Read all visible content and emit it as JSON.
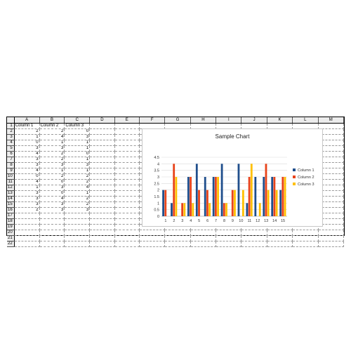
{
  "columns": [
    "A",
    "B",
    "C",
    "D",
    "E",
    "F",
    "G",
    "H",
    "I",
    "J",
    "K",
    "L",
    "M"
  ],
  "row_numbers": [
    "1",
    "2",
    "3",
    "4",
    "5",
    "6",
    "7",
    "8",
    "9",
    "10",
    "11",
    "12",
    "13",
    "14",
    "15",
    "16",
    "17",
    "18",
    "19",
    "20",
    "21",
    "22"
  ],
  "headers": [
    "Column 1",
    "Column 2",
    "Column 3"
  ],
  "data_rows": [
    [
      "2",
      "2",
      "0"
    ],
    [
      "1",
      "4",
      "3"
    ],
    [
      "0",
      "1",
      "1"
    ],
    [
      "3",
      "3",
      "1"
    ],
    [
      "4",
      "2",
      "0"
    ],
    [
      "3",
      "2",
      "1"
    ],
    [
      "3",
      "3",
      "3"
    ],
    [
      "4",
      "1",
      "1"
    ],
    [
      "0",
      "2",
      "2"
    ],
    [
      "4",
      "0",
      "2"
    ],
    [
      "1",
      "3",
      "4"
    ],
    [
      "3",
      "0",
      "1"
    ],
    [
      "3",
      "4",
      "2"
    ],
    [
      "3",
      "3",
      "2"
    ],
    [
      "2",
      "3",
      "3"
    ]
  ],
  "chart_data": {
    "type": "bar",
    "title": "Sample Chart",
    "categories": [
      "1",
      "2",
      "3",
      "4",
      "5",
      "6",
      "7",
      "8",
      "9",
      "10",
      "11",
      "12",
      "13",
      "14",
      "15"
    ],
    "series": [
      {
        "name": "Column 1",
        "color": "#1f4e8c",
        "values": [
          2,
          1,
          0,
          3,
          4,
          3,
          3,
          4,
          0,
          4,
          1,
          3,
          3,
          3,
          2
        ]
      },
      {
        "name": "Column 2",
        "color": "#e8431a",
        "values": [
          2,
          4,
          1,
          3,
          2,
          2,
          3,
          1,
          2,
          0,
          3,
          0,
          4,
          3,
          3
        ]
      },
      {
        "name": "Column 3",
        "color": "#ffc000",
        "values": [
          0,
          3,
          1,
          1,
          0,
          1,
          3,
          1,
          2,
          2,
          4,
          1,
          2,
          2,
          3
        ]
      }
    ],
    "yticks": [
      "0",
      "0.5",
      "1",
      "1.5",
      "2",
      "2.5",
      "3",
      "3.5",
      "4",
      "4.5"
    ],
    "ylim": [
      0,
      4.5
    ],
    "grid": true,
    "legend": "right"
  }
}
